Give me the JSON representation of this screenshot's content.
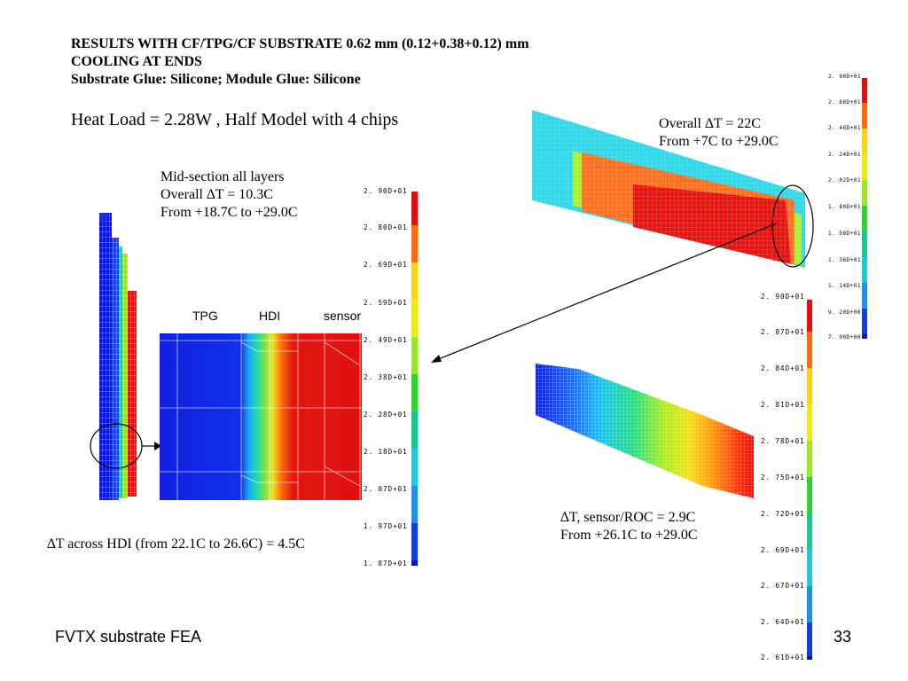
{
  "title": {
    "line1": "RESULTS WITH CF/TPG/CF SUBSTRATE 0.62 mm (0.12+0.38+0.12) mm",
    "line2": "COOLING AT ENDS",
    "line3": "Substrate Glue: Silicone;  Module Glue: Silicone"
  },
  "heat_load": "Heat Load = 2.28W , Half Model with 4 chips",
  "mid_section": {
    "line1": "Mid-section all layers",
    "line2": "Overall ∆T = 10.3C",
    "line3": "From +18.7C to +29.0C"
  },
  "layers": {
    "tpg": "TPG",
    "hdi": "HDI",
    "sensor": "sensor"
  },
  "hdi_note": "∆T across HDI (from 22.1C to 26.6C) = 4.5C",
  "overall_note": {
    "line1": "Overall ∆T = 22C",
    "line2": "From +7C to +29.0C"
  },
  "sensor_note": {
    "line1": "∆T, sensor/ROC = 2.9C",
    "line2": "From +26.1C to +29.0C"
  },
  "scale_mid": [
    "2. 90D+01",
    "2. 80D+01",
    "2. 69D+01",
    "2. 59D+01",
    "2. 49D+01",
    "2. 38D+01",
    "2. 28D+01",
    "2. 18D+01",
    "2. 07D+01",
    "1. 97D+01",
    "1. 87D+01"
  ],
  "scale_top": [
    "2. 90D+01",
    "2. 68D+01",
    "2. 46D+01",
    "2. 24D+01",
    "2. 02D+01",
    "1. 80D+01",
    "1. 58D+01",
    "1. 36D+01",
    "1. 14D+01",
    "9. 20D+00",
    "7. 00D+00"
  ],
  "scale_bottom": [
    "2. 90D+01",
    "2. 87D+01",
    "2. 84D+01",
    "2. 81D+01",
    "2. 78D+01",
    "2. 75D+01",
    "2. 72D+01",
    "2. 69D+01",
    "2. 67D+01",
    "2. 64D+01",
    "2. 61D+01"
  ],
  "colors": {
    "colorbar": [
      "#e01010",
      "#ff6a10",
      "#ffd21a",
      "#e8ee10",
      "#9ae628",
      "#30d030",
      "#18c890",
      "#20c8d8",
      "#2090e8",
      "#1040d8",
      "#0a14c0"
    ]
  },
  "footer": {
    "left": "FVTX substrate FEA",
    "page": "33"
  }
}
